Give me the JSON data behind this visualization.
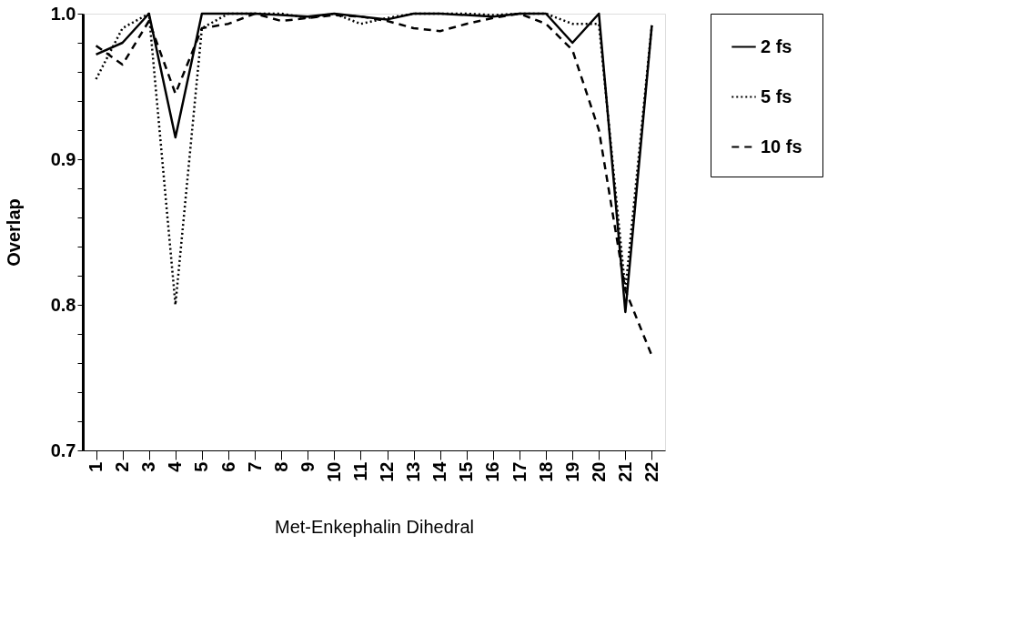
{
  "chart_data": {
    "type": "line",
    "xlabel": "Met-Enkephalin Dihedral",
    "ylabel": "Overlap",
    "categories": [
      "1",
      "2",
      "3",
      "4",
      "5",
      "6",
      "7",
      "8",
      "9",
      "10",
      "11",
      "12",
      "13",
      "14",
      "15",
      "16",
      "17",
      "18",
      "19",
      "20",
      "21",
      "22"
    ],
    "ylim": [
      0.7,
      1.0
    ],
    "yticks": [
      {
        "value": 0.7,
        "label": "0.7"
      },
      {
        "value": 0.72,
        "label": null
      },
      {
        "value": 0.74,
        "label": null
      },
      {
        "value": 0.76,
        "label": null
      },
      {
        "value": 0.78,
        "label": null
      },
      {
        "value": 0.8,
        "label": "0.8"
      },
      {
        "value": 0.82,
        "label": null
      },
      {
        "value": 0.84,
        "label": null
      },
      {
        "value": 0.86,
        "label": null
      },
      {
        "value": 0.88,
        "label": null
      },
      {
        "value": 0.9,
        "label": "0.9"
      },
      {
        "value": 0.92,
        "label": null
      },
      {
        "value": 0.94,
        "label": null
      },
      {
        "value": 0.96,
        "label": null
      },
      {
        "value": 0.98,
        "label": null
      },
      {
        "value": 1.0,
        "label": "1.0"
      }
    ],
    "grid": false,
    "legend": "right",
    "marker": "none",
    "series": [
      {
        "name": "2 fs",
        "color": "#000000",
        "line_style": "solid",
        "values": [
          0.972,
          0.98,
          1.0,
          0.915,
          1.0,
          1.0,
          1.0,
          0.999,
          0.998,
          1.0,
          0.998,
          0.996,
          1.0,
          1.0,
          0.999,
          0.998,
          1.0,
          1.0,
          0.98,
          1.0,
          0.795,
          0.992
        ]
      },
      {
        "name": "5 fs",
        "color": "#000000",
        "line_style": "dotted",
        "values": [
          0.955,
          0.99,
          1.0,
          0.8,
          0.99,
          1.0,
          1.0,
          1.0,
          0.997,
          1.0,
          0.993,
          0.997,
          1.0,
          1.0,
          1.0,
          0.999,
          1.0,
          1.0,
          0.993,
          0.993,
          0.81,
          0.992
        ]
      },
      {
        "name": "10 fs",
        "color": "#000000",
        "line_style": "dashed",
        "values": [
          0.978,
          0.965,
          0.995,
          0.945,
          0.99,
          0.993,
          1.0,
          0.995,
          0.997,
          0.999,
          0.998,
          0.995,
          0.99,
          0.988,
          0.993,
          0.997,
          1.0,
          0.993,
          0.975,
          0.92,
          0.81,
          0.765
        ]
      }
    ]
  }
}
